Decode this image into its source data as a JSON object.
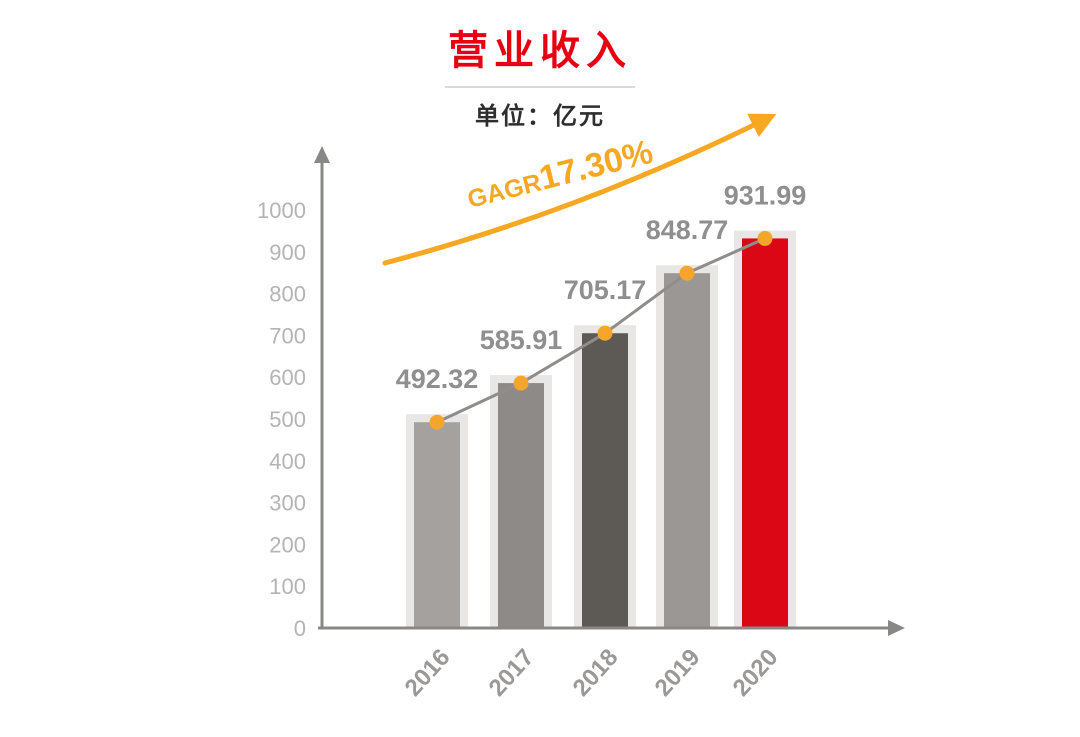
{
  "header": {
    "title": "营业收入",
    "subtitle": "单位：亿元"
  },
  "chart_data": {
    "type": "bar",
    "title": "营业收入",
    "subtitle": "单位：亿元",
    "categories": [
      "2016",
      "2017",
      "2018",
      "2019",
      "2020"
    ],
    "values": [
      492.32,
      585.91,
      705.17,
      848.77,
      931.99
    ],
    "value_labels": [
      "492.32",
      "585.91",
      "705.17",
      "848.77",
      "931.99"
    ],
    "y_ticks": [
      0,
      100,
      200,
      300,
      400,
      500,
      600,
      700,
      800,
      900,
      1000
    ],
    "ylim": [
      0,
      1000
    ],
    "xlabel": "",
    "ylabel": "",
    "grid": false,
    "legend": false,
    "annotation": {
      "prefix": "GAGR",
      "value": "17.30%"
    },
    "colors": {
      "title_red": "#e60012",
      "bar_colors": [
        "#a5a19e",
        "#8e8a87",
        "#5d5955",
        "#9b9795",
        "#dc0715"
      ],
      "halo": "#e9e7e5",
      "trend_line": "#8f8d8b",
      "dot_orange": "#f6a52c",
      "arrow_orange": "#f7a823",
      "axis": "#8a8886",
      "tick_label": "#b5b3b3",
      "x_label": "#9b9997",
      "value_label": "#8f8f8f"
    }
  }
}
